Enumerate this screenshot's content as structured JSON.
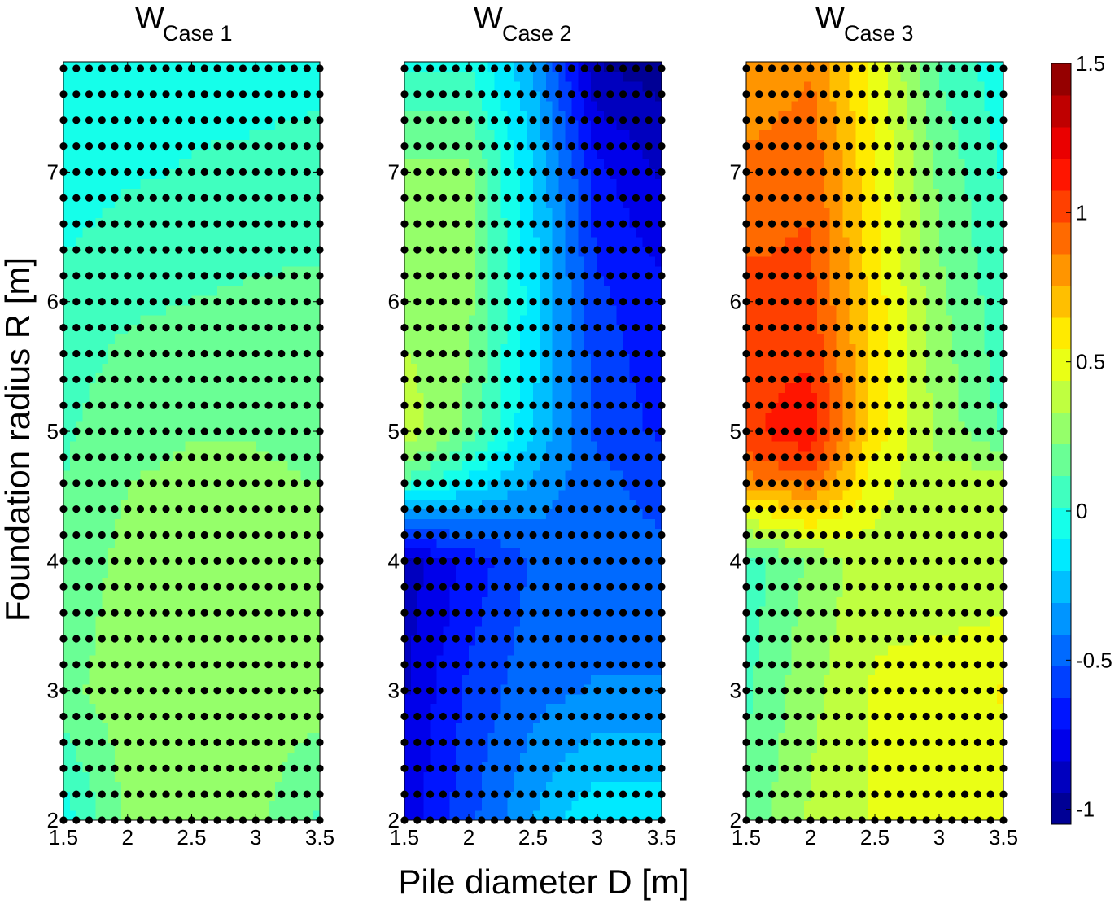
{
  "chart_data": {
    "type": "heatmap",
    "colormap": "jet",
    "colorbar": {
      "min": -1.05,
      "max": 1.5,
      "ticks": [
        1.5,
        1,
        0.5,
        0,
        -0.5,
        -1
      ]
    },
    "xlabel": "Pile diameter D [m]",
    "ylabel": "Foundation radius R [m]",
    "xlim": [
      1.5,
      3.5
    ],
    "ylim": [
      2,
      7.85
    ],
    "x_ticks": [
      1.5,
      2,
      2.5,
      3,
      3.5
    ],
    "y_ticks": [
      2,
      3,
      4,
      5,
      6,
      7
    ],
    "sample_grid": {
      "x": [
        1.5,
        1.6,
        1.7,
        1.8,
        1.9,
        2.0,
        2.1,
        2.2,
        2.3,
        2.4,
        2.5,
        2.6,
        2.7,
        2.8,
        2.9,
        3.0,
        3.1,
        3.2,
        3.3,
        3.4,
        3.5
      ],
      "y": [
        2.0,
        2.2,
        2.4,
        2.6,
        2.8,
        3.0,
        3.2,
        3.4,
        3.6,
        3.8,
        4.0,
        4.2,
        4.4,
        4.6,
        4.8,
        5.0,
        5.2,
        5.4,
        5.6,
        5.8,
        6.0,
        6.2,
        6.4,
        6.6,
        6.8,
        7.0,
        7.2,
        7.4,
        7.6,
        7.8
      ]
    },
    "panels": [
      {
        "title": "W",
        "subscript": "Case 1",
        "D": [
          1.5,
          2.0,
          2.5,
          3.0,
          3.5
        ],
        "R": [
          2.0,
          3.0,
          4.0,
          5.0,
          6.0,
          7.0,
          7.85
        ],
        "values": [
          [
            -0.05,
            0.25,
            0.28,
            0.25,
            0.1
          ],
          [
            0.2,
            0.28,
            0.3,
            0.28,
            0.28
          ],
          [
            0.15,
            0.26,
            0.28,
            0.27,
            0.26
          ],
          [
            0.1,
            0.2,
            0.22,
            0.22,
            0.2
          ],
          [
            0.05,
            0.1,
            0.12,
            0.14,
            0.15
          ],
          [
            -0.05,
            0.0,
            0.02,
            0.03,
            0.05
          ],
          [
            -0.08,
            -0.05,
            -0.02,
            -0.02,
            -0.02
          ]
        ]
      },
      {
        "title": "W",
        "subscript": "Case 2",
        "D": [
          1.5,
          2.0,
          2.5,
          3.0,
          3.5
        ],
        "R": [
          2.0,
          3.0,
          4.0,
          4.7,
          5.0,
          6.0,
          7.0,
          7.85
        ],
        "values": [
          [
            -0.8,
            -0.55,
            -0.3,
            -0.1,
            -0.1
          ],
          [
            -0.85,
            -0.6,
            -0.45,
            -0.4,
            -0.4
          ],
          [
            -0.9,
            -0.7,
            -0.5,
            -0.5,
            -0.5
          ],
          [
            0.2,
            -0.05,
            -0.3,
            -0.5,
            -0.55
          ],
          [
            0.4,
            0.2,
            -0.2,
            -0.55,
            -0.65
          ],
          [
            0.3,
            0.25,
            -0.15,
            -0.6,
            -0.7
          ],
          [
            0.25,
            0.25,
            -0.2,
            -0.7,
            -0.85
          ],
          [
            0.0,
            0.0,
            -0.3,
            -0.95,
            -1.0
          ]
        ]
      },
      {
        "title": "W",
        "subscript": "Case 3",
        "D": [
          1.5,
          2.0,
          2.5,
          3.0,
          3.5
        ],
        "R": [
          2.0,
          3.0,
          4.0,
          4.7,
          5.0,
          6.0,
          7.0,
          7.85
        ],
        "values": [
          [
            0.15,
            0.35,
            0.45,
            0.5,
            0.5
          ],
          [
            0.1,
            0.3,
            0.45,
            0.5,
            0.55
          ],
          [
            0.05,
            0.25,
            0.4,
            0.35,
            0.35
          ],
          [
            0.9,
            1.0,
            0.5,
            0.35,
            0.35
          ],
          [
            1.05,
            1.15,
            0.6,
            0.3,
            0.1
          ],
          [
            1.0,
            1.0,
            0.6,
            0.25,
            0.05
          ],
          [
            0.9,
            0.95,
            0.55,
            0.2,
            0.0
          ],
          [
            0.75,
            0.85,
            0.5,
            0.1,
            -0.05
          ]
        ]
      }
    ]
  }
}
